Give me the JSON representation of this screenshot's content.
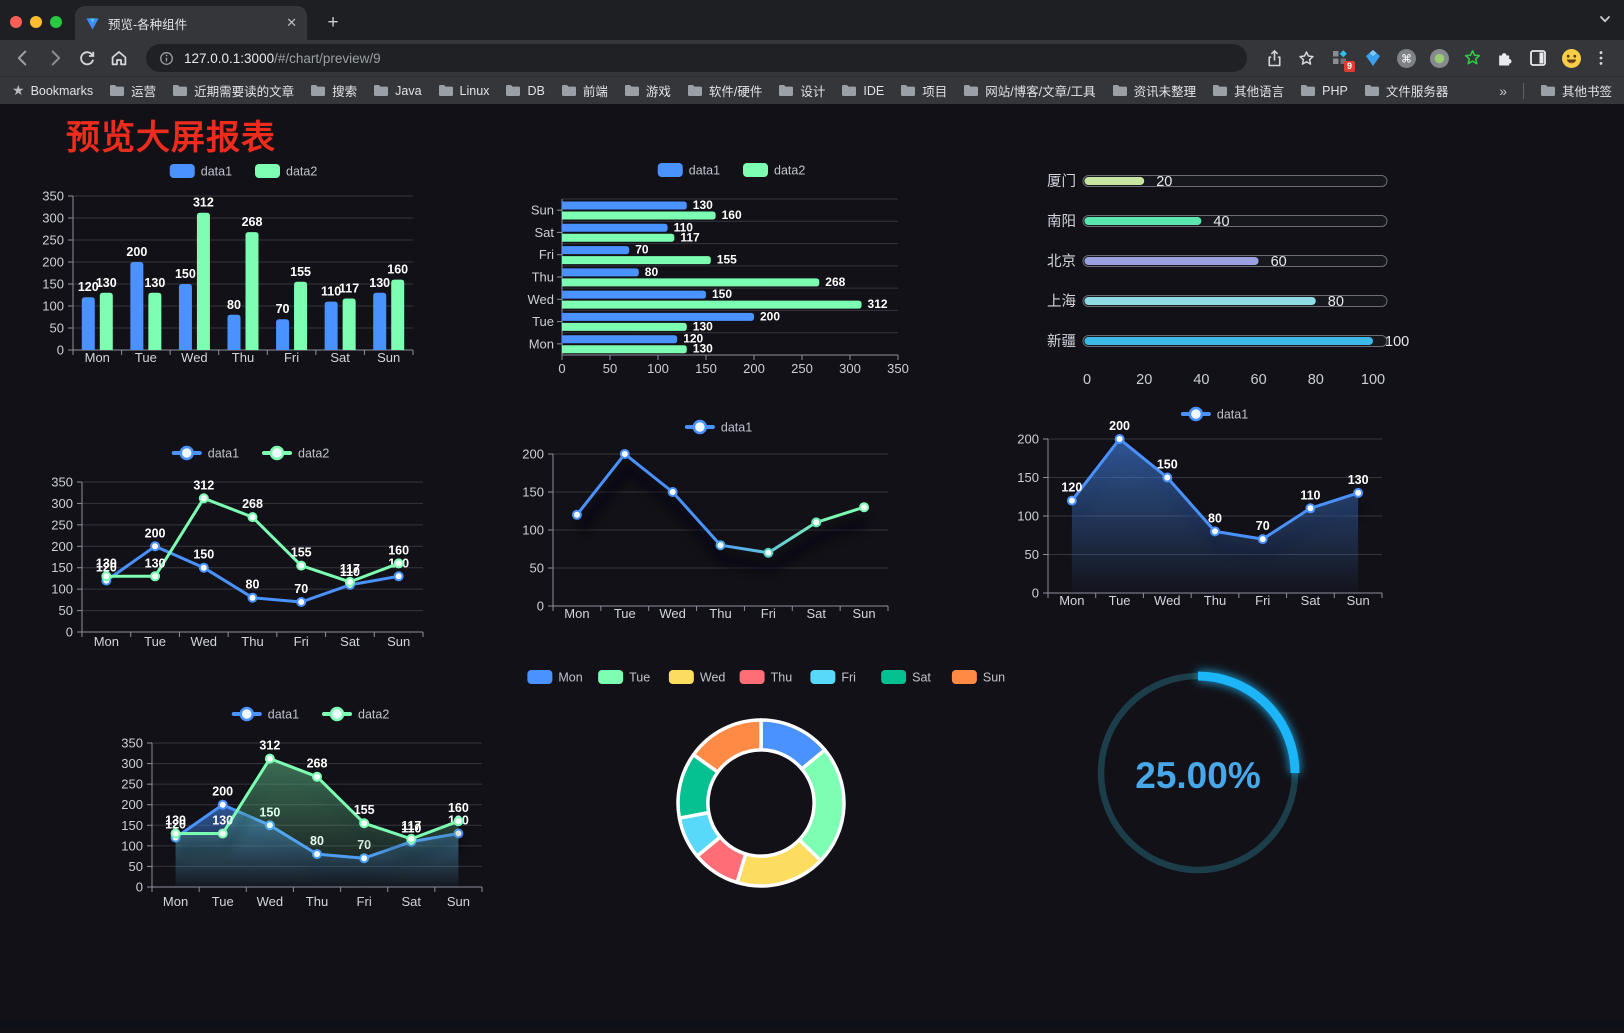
{
  "browser": {
    "tab": {
      "title": "预览-各种组件",
      "close_glyph": "✕"
    },
    "url_host": "127.0.0.1:3000",
    "url_path": "/#/chart/preview/9",
    "bookmarks_label": "Bookmarks",
    "bookmarks": [
      "运营",
      "近期需要读的文章",
      "搜索",
      "Java",
      "Linux",
      "DB",
      "前端",
      "游戏",
      "软件/硬件",
      "设计",
      "IDE",
      "项目",
      "网站/博客/文章/工具",
      "资讯未整理",
      "其他语言",
      "PHP",
      "文件服务器"
    ],
    "bookmarks_overflow": "»",
    "other_bookmarks": "其他书签",
    "extension_badge": "9",
    "icons": {
      "command_symbol": "⌘",
      "bookmarks_star": "★"
    }
  },
  "page": {
    "title": "预览大屏报表",
    "title_color": "#ee2c1e"
  },
  "days": [
    "Mon",
    "Tue",
    "Wed",
    "Thu",
    "Fri",
    "Sat",
    "Sun"
  ],
  "series": {
    "data1": [
      120,
      200,
      150,
      80,
      70,
      110,
      130
    ],
    "data2": [
      130,
      130,
      312,
      268,
      155,
      117,
      160
    ]
  },
  "colors": {
    "data1": "#4992ff",
    "data2": "#7cffb2",
    "axis": "#8c8f9b",
    "grid": "#34353d",
    "tick_label": "#ccced8",
    "value_label": "#ffffff",
    "legend_label": "#bfc1cc"
  },
  "chart_data": [
    {
      "id": "bar-vertical",
      "type": "bar",
      "categories": [
        "Mon",
        "Tue",
        "Wed",
        "Thu",
        "Fri",
        "Sat",
        "Sun"
      ],
      "series": [
        {
          "name": "data1",
          "color": "#4992ff",
          "values": [
            120,
            200,
            150,
            80,
            70,
            110,
            130
          ]
        },
        {
          "name": "data2",
          "color": "#7cffb2",
          "values": [
            130,
            130,
            312,
            268,
            155,
            117,
            160
          ]
        }
      ],
      "ylim": [
        0,
        350
      ],
      "ystep": 50,
      "grid": true,
      "legend_position": "top"
    },
    {
      "id": "bar-horizontal",
      "type": "bar",
      "orientation": "horizontal",
      "categories_top_to_bottom": [
        "Sun",
        "Sat",
        "Fri",
        "Thu",
        "Wed",
        "Tue",
        "Mon"
      ],
      "series": [
        {
          "name": "data1",
          "color": "#4992ff",
          "values_top_to_bottom": [
            130,
            110,
            70,
            80,
            150,
            200,
            120
          ]
        },
        {
          "name": "data2",
          "color": "#7cffb2",
          "values_top_to_bottom": [
            160,
            117,
            155,
            268,
            312,
            130,
            130
          ]
        }
      ],
      "xlim": [
        0,
        350
      ],
      "xstep": 50,
      "legend_position": "top"
    },
    {
      "id": "progress-bars",
      "type": "bar",
      "subtype": "rounded-progress",
      "categories": [
        "厦门",
        "南阳",
        "北京",
        "上海",
        "新疆"
      ],
      "values": [
        20,
        40,
        60,
        80,
        100
      ],
      "colors": [
        "#c6e6a2",
        "#5ce6af",
        "#9aa0e0",
        "#8fdde4",
        "#3cb9e8"
      ],
      "xlim": [
        0,
        100
      ],
      "xstep": 20
    },
    {
      "id": "line-two-series",
      "type": "line",
      "categories": [
        "Mon",
        "Tue",
        "Wed",
        "Thu",
        "Fri",
        "Sat",
        "Sun"
      ],
      "series": [
        {
          "name": "data1",
          "color": "#4992ff",
          "values": [
            120,
            200,
            150,
            80,
            70,
            110,
            130
          ]
        },
        {
          "name": "data2",
          "color": "#7cffb2",
          "values": [
            130,
            130,
            312,
            268,
            155,
            117,
            160
          ]
        }
      ],
      "ylim": [
        0,
        350
      ],
      "ystep": 50,
      "labels": true,
      "legend_position": "top"
    },
    {
      "id": "line-gradient",
      "type": "line",
      "categories": [
        "Mon",
        "Tue",
        "Wed",
        "Thu",
        "Fri",
        "Sat",
        "Sun"
      ],
      "series": [
        {
          "name": "data1",
          "gradient": [
            "#4992ff",
            "#7cffb2"
          ],
          "values": [
            120,
            200,
            150,
            80,
            70,
            110,
            130
          ],
          "marker_colors": [
            "#4992ff",
            "#4992ff",
            "#4992ff",
            "#44a8e8",
            "#55cfc0",
            "#66e8b0",
            "#7cffb2"
          ]
        }
      ],
      "ylim": [
        0,
        200
      ],
      "ystep": 50,
      "labels": false,
      "shadow": true,
      "legend_position": "top"
    },
    {
      "id": "area-single",
      "type": "area",
      "categories": [
        "Mon",
        "Tue",
        "Wed",
        "Thu",
        "Fri",
        "Sat",
        "Sun"
      ],
      "series": [
        {
          "name": "data1",
          "color": "#4992ff",
          "values": [
            120,
            200,
            150,
            80,
            70,
            110,
            130
          ]
        }
      ],
      "ylim": [
        0,
        200
      ],
      "ystep": 50,
      "labels": true,
      "legend_position": "top"
    },
    {
      "id": "line-two-series-area",
      "type": "area",
      "categories": [
        "Mon",
        "Tue",
        "Wed",
        "Thu",
        "Fri",
        "Sat",
        "Sun"
      ],
      "series": [
        {
          "name": "data1",
          "color": "#4992ff",
          "values": [
            120,
            200,
            150,
            80,
            70,
            110,
            130
          ]
        },
        {
          "name": "data2",
          "color": "#7cffb2",
          "values": [
            130,
            130,
            312,
            268,
            155,
            117,
            160
          ]
        }
      ],
      "ylim": [
        0,
        350
      ],
      "ystep": 50,
      "labels": true,
      "legend_position": "top"
    },
    {
      "id": "donut",
      "type": "pie",
      "inner_radius_ratio": 0.64,
      "labels": [
        "Mon",
        "Tue",
        "Wed",
        "Thu",
        "Fri",
        "Sat",
        "Sun"
      ],
      "values": [
        120,
        200,
        150,
        80,
        70,
        110,
        130
      ],
      "colors": [
        "#4992ff",
        "#7cffb2",
        "#fddd60",
        "#ff6e76",
        "#58d9f9",
        "#05c091",
        "#ff8a45"
      ],
      "border_color": "#ffffff",
      "legend_position": "top"
    },
    {
      "id": "gauge",
      "type": "gauge",
      "value": 25,
      "max": 100,
      "display": "25.00%",
      "arc_color": "#1ab5f8",
      "track_color": "#1c3e4b",
      "text_color": "#46a7e9"
    }
  ]
}
